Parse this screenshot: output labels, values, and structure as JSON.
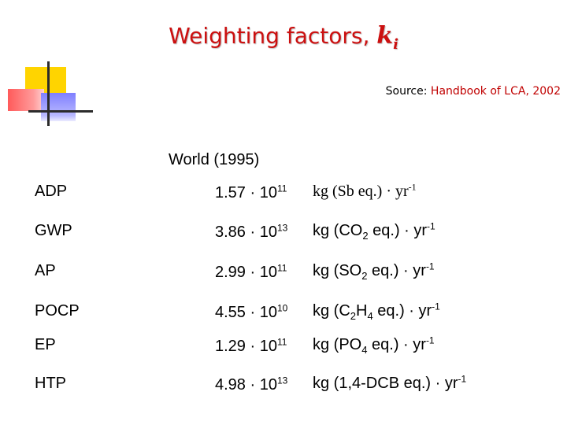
{
  "title": {
    "text": "Weighting factors, ",
    "var_base": "k",
    "var_sub": "i"
  },
  "source": {
    "prefix": "Source:",
    "name": "Handbook of LCA, 2002"
  },
  "region": "World (1995)",
  "rows": [
    {
      "category": "ADP",
      "mantissa": "1.57 · 10",
      "exponent": "11",
      "unit": [
        {
          "t": "kg (Sb eq.) · yr"
        },
        {
          "sup": "-1"
        }
      ]
    },
    {
      "category": "GWP",
      "mantissa": "3.86 · 10",
      "exponent": "13",
      "unit": [
        {
          "t": "kg (CO"
        },
        {
          "sub": "2"
        },
        {
          "t": " eq.) · yr"
        },
        {
          "sup": "-1"
        }
      ]
    },
    {
      "category": "AP",
      "mantissa": "2.99 · 10",
      "exponent": "11",
      "unit": [
        {
          "t": "kg (SO"
        },
        {
          "sub": "2"
        },
        {
          "t": " eq.) · yr"
        },
        {
          "sup": "-1"
        }
      ]
    },
    {
      "category": "POCP",
      "mantissa": "4.55 · 10",
      "exponent": "10",
      "unit": [
        {
          "t": "kg (C"
        },
        {
          "sub": "2"
        },
        {
          "t": "H"
        },
        {
          "sub": "4"
        },
        {
          "t": " eq.) · yr"
        },
        {
          "sup": "-1"
        }
      ]
    },
    {
      "category": "EP",
      "mantissa": "1.29 · 10",
      "exponent": "11",
      "unit": [
        {
          "t": "kg (PO"
        },
        {
          "sub": "4"
        },
        {
          "t": " eq.) · yr"
        },
        {
          "sup": "-1"
        }
      ]
    },
    {
      "category": "HTP",
      "mantissa": "4.98 · 10",
      "exponent": "13",
      "unit": [
        {
          "t": "kg (1,4-DCB eq.) · yr"
        },
        {
          "sup": "-1"
        }
      ]
    }
  ],
  "colors": {
    "title": "#cc1010",
    "source_name": "#c00000",
    "deco_yellow": "#ffd400",
    "deco_red": "#ff5a5a",
    "deco_blue": "#7f7fff"
  }
}
